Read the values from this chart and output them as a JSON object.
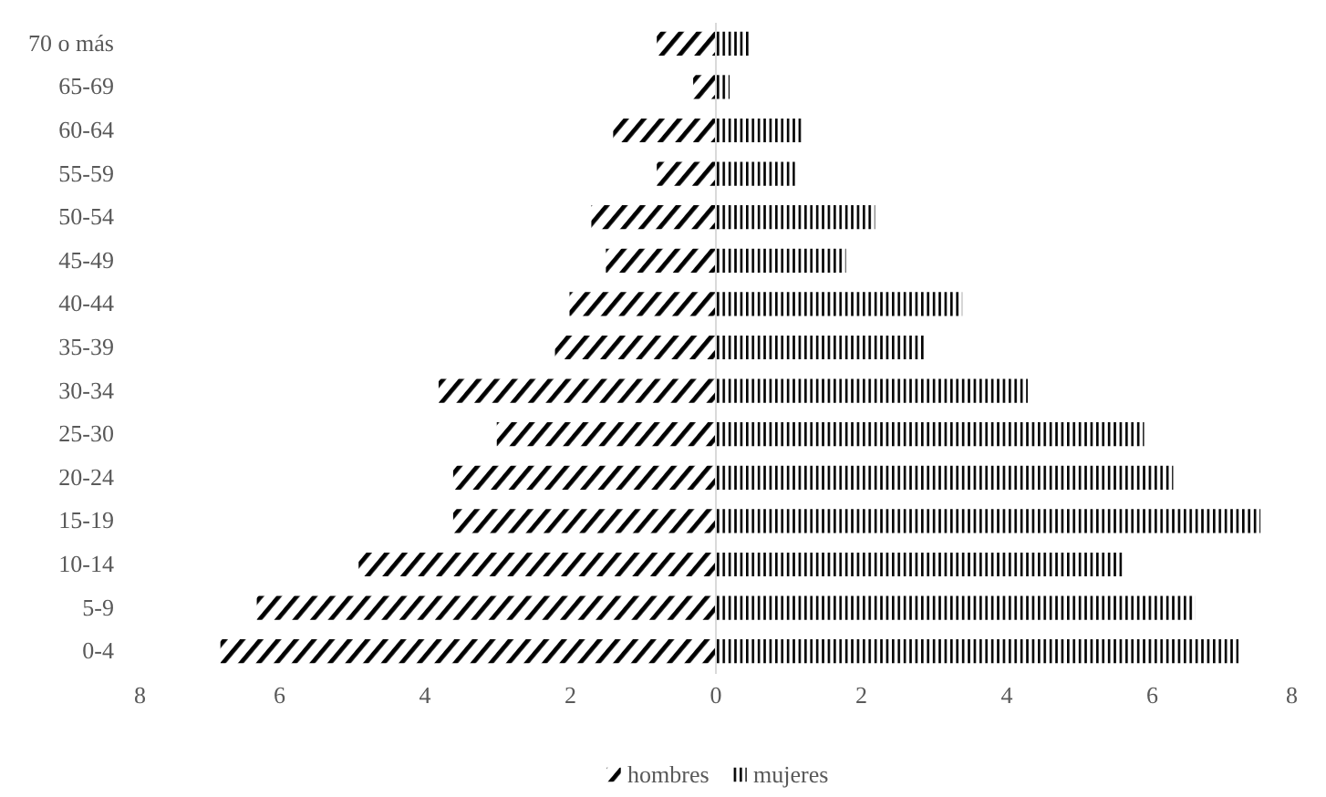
{
  "chart_data": {
    "type": "bar",
    "orientation": "horizontal",
    "stacked": true,
    "categories": [
      "70 o más",
      "65-69",
      "60-64",
      "55-59",
      "50-54",
      "45-49",
      "40-44",
      "35-39",
      "30-34",
      "25-30",
      "20-24",
      "15-19",
      "10-14",
      "5-9",
      "0-4"
    ],
    "series": [
      {
        "name": "hombres",
        "color": "#000000",
        "values": [
          -0.8,
          -0.3,
          -1.4,
          -0.8,
          -1.7,
          -1.5,
          -2.0,
          -2.2,
          -3.8,
          -3.0,
          -3.6,
          -3.6,
          -4.9,
          -6.3,
          -6.8
        ]
      },
      {
        "name": "mujeres",
        "color": "#000000",
        "values": [
          0.5,
          0.2,
          1.2,
          1.1,
          2.2,
          1.8,
          3.4,
          2.9,
          4.3,
          5.9,
          6.3,
          7.5,
          5.6,
          6.6,
          7.2
        ]
      }
    ],
    "xlim": [
      -8,
      8
    ],
    "xticks": [
      {
        "value": -8,
        "label": "8"
      },
      {
        "value": -6,
        "label": "6"
      },
      {
        "value": -4,
        "label": "4"
      },
      {
        "value": -2,
        "label": "2"
      },
      0,
      2,
      4,
      6,
      8
    ],
    "legend": "bottom"
  }
}
